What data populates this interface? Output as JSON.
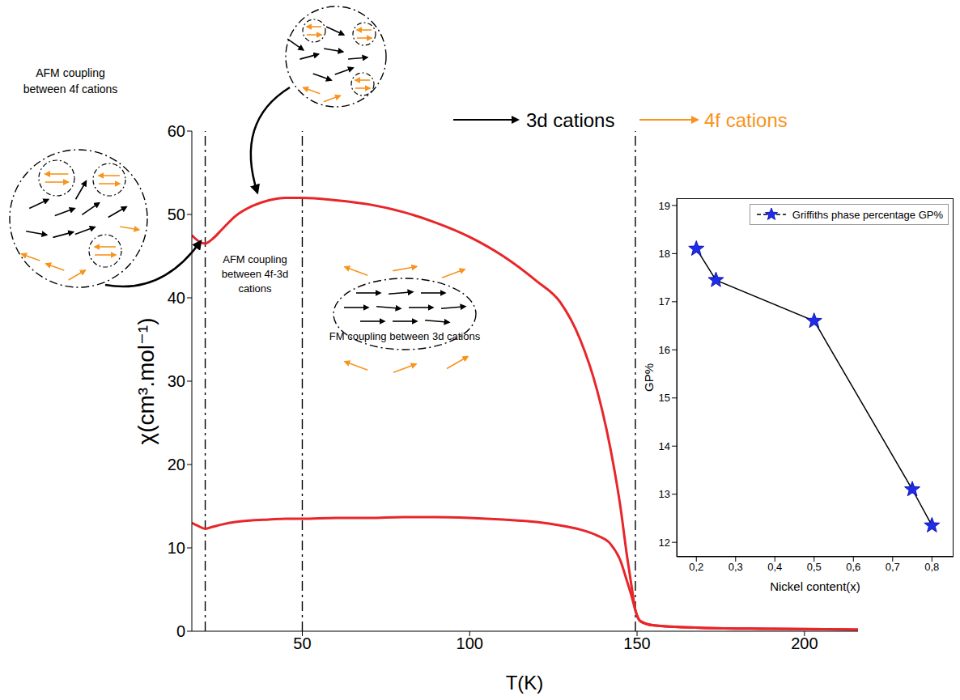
{
  "chart_data": [
    {
      "type": "line",
      "x_label": "T(K)",
      "y_label": "χ(cm³.mol⁻¹)",
      "x": [
        17,
        19,
        21,
        23,
        26,
        30,
        35,
        40,
        45,
        50,
        60,
        70,
        80,
        90,
        100,
        110,
        120,
        127,
        133,
        138,
        142,
        145,
        147,
        148.5,
        149.5,
        151,
        155,
        170,
        190,
        216
      ],
      "series": [
        {
          "color": "#e8262a",
          "values": [
            47.5,
            46.8,
            46.5,
            47,
            48.2,
            49.8,
            51,
            51.7,
            52,
            52,
            51.7,
            51.2,
            50.3,
            49,
            47.3,
            45,
            42,
            39.5,
            35,
            29,
            22,
            15,
            9,
            5,
            2.5,
            1.2,
            0.7,
            0.4,
            0.3,
            0.2
          ]
        },
        {
          "color": "#e8262a",
          "values": [
            13,
            12.6,
            12.3,
            12.5,
            12.8,
            13.1,
            13.3,
            13.4,
            13.5,
            13.5,
            13.6,
            13.6,
            13.7,
            13.7,
            13.6,
            13.4,
            13.1,
            12.7,
            12.2,
            11.5,
            10.5,
            8.5,
            6,
            4,
            2.5,
            1.2,
            0.7,
            0.4,
            0.3,
            0.2
          ]
        }
      ],
      "xlim": [
        17,
        216
      ],
      "xticks": [
        50,
        100,
        150,
        200
      ],
      "ylim": [
        0,
        60
      ],
      "yticks": [
        0,
        10,
        20,
        30,
        40,
        50,
        60
      ],
      "vlines": [
        21,
        50,
        149.5
      ],
      "annotations": [
        "AFM coupling between 4f cations",
        "AFM coupling between 4f-3d cations",
        "FM coupling between 3d cations"
      ],
      "spin_key": [
        {
          "label": "3d cations",
          "color": "#000000"
        },
        {
          "label": "4f cations",
          "color": "#f7941d"
        }
      ]
    },
    {
      "type": "line",
      "x_label": "Nickel content(x)",
      "y_label": "GP%",
      "x": [
        0.2,
        0.25,
        0.5,
        0.75,
        0.8
      ],
      "series": [
        {
          "name": "Griffiths phase percentage GP%",
          "color": "#1f2ee6",
          "marker": "star",
          "line_style": "solid",
          "values": [
            18.1,
            17.45,
            16.6,
            13.1,
            12.35
          ]
        }
      ],
      "xlim": [
        0.15,
        0.855
      ],
      "xticks": [
        {
          "value": 0.2,
          "label": "0,2"
        },
        {
          "value": 0.3,
          "label": "0,3"
        },
        {
          "value": 0.4,
          "label": "0,4"
        },
        {
          "value": 0.5,
          "label": "0,5"
        },
        {
          "value": 0.6,
          "label": "0,6"
        },
        {
          "value": 0.7,
          "label": "0,7"
        },
        {
          "value": 0.8,
          "label": "0,8"
        }
      ],
      "ylim": [
        11.7,
        19.15
      ],
      "yticks": [
        12,
        13,
        14,
        15,
        16,
        17,
        18,
        19
      ],
      "legend": "upper right"
    }
  ]
}
